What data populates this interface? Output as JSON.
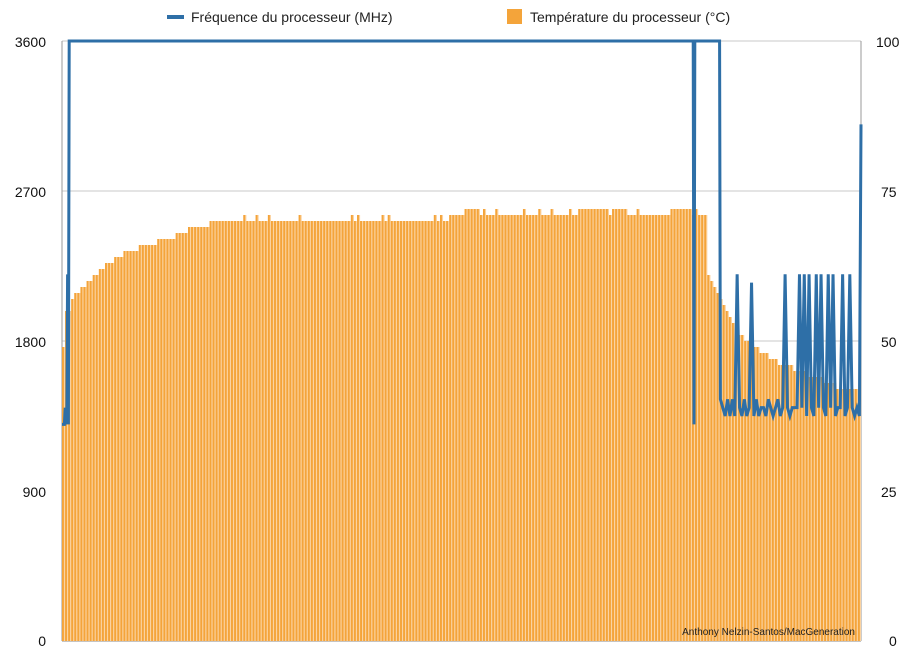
{
  "chart_data": {
    "type": "bar",
    "legend": {
      "placement": "top",
      "items": [
        {
          "label": "Fréquence du processeur (MHz)",
          "symbol": "line",
          "color": "#2e6fa7"
        },
        {
          "label": "Température du processeur (°C)",
          "symbol": "square",
          "color": "#f4a43a"
        }
      ]
    },
    "credit": "Anthony Nelzin-Santos/MacGeneration",
    "grid": true,
    "y_left": {
      "ticks": [
        0,
        900,
        1800,
        2700,
        3600
      ],
      "tick_labels": [
        "0",
        "900",
        "1800",
        "2700",
        "3600"
      ],
      "range": [
        0,
        3600
      ]
    },
    "y_right": {
      "ticks": [
        0,
        25,
        50,
        75,
        100
      ],
      "tick_labels": [
        "0",
        "25",
        "50",
        "75",
        "100"
      ],
      "range": [
        0,
        100
      ]
    },
    "series": [
      {
        "name": "Température du processeur (°C)",
        "axis": "right",
        "kind": "bars",
        "color": "#f4a43a",
        "values": [
          49,
          55,
          55,
          57,
          58,
          58,
          59,
          59,
          60,
          60,
          61,
          61,
          62,
          62,
          63,
          63,
          63,
          64,
          64,
          64,
          65,
          65,
          65,
          65,
          65,
          66,
          66,
          66,
          66,
          66,
          66,
          67,
          67,
          67,
          67,
          67,
          67,
          68,
          68,
          68,
          68,
          69,
          69,
          69,
          69,
          69,
          69,
          69,
          70,
          70,
          70,
          70,
          70,
          70,
          70,
          70,
          70,
          70,
          70,
          71,
          70,
          70,
          70,
          71,
          70,
          70,
          70,
          71,
          70,
          70,
          70,
          70,
          70,
          70,
          70,
          70,
          70,
          71,
          70,
          70,
          70,
          70,
          70,
          70,
          70,
          70,
          70,
          70,
          70,
          70,
          70,
          70,
          70,
          70,
          71,
          70,
          71,
          70,
          70,
          70,
          70,
          70,
          70,
          70,
          71,
          70,
          71,
          70,
          70,
          70,
          70,
          70,
          70,
          70,
          70,
          70,
          70,
          70,
          70,
          70,
          70,
          71,
          70,
          71,
          70,
          70,
          71,
          71,
          71,
          71,
          71,
          72,
          72,
          72,
          72,
          72,
          71,
          72,
          71,
          71,
          71,
          72,
          71,
          71,
          71,
          71,
          71,
          71,
          71,
          71,
          72,
          71,
          71,
          71,
          71,
          72,
          71,
          71,
          71,
          72,
          71,
          71,
          71,
          71,
          71,
          72,
          71,
          71,
          72,
          72,
          72,
          72,
          72,
          72,
          72,
          72,
          72,
          72,
          71,
          72,
          72,
          72,
          72,
          72,
          71,
          71,
          71,
          72,
          71,
          71,
          71,
          71,
          71,
          71,
          71,
          71,
          71,
          71,
          72,
          72,
          72,
          72,
          72,
          72,
          72,
          71,
          72,
          71,
          71,
          71,
          61,
          60,
          59,
          58,
          57,
          56,
          55,
          54,
          53,
          52,
          51,
          51,
          50,
          50,
          49,
          49,
          49,
          48,
          48,
          48,
          47,
          47,
          47,
          46,
          46,
          46,
          46,
          46,
          45,
          45,
          45,
          45,
          45,
          44,
          44,
          44,
          44,
          44,
          43,
          43,
          43,
          43,
          42,
          42,
          42,
          42,
          42,
          42,
          42,
          42
        ]
      },
      {
        "name": "Fréquence du processeur (MHz)",
        "axis": "left",
        "kind": "line",
        "color": "#2e6fa7",
        "x_range": [
          0,
          100
        ],
        "points": [
          [
            0,
            1300
          ],
          [
            0.3,
            1300
          ],
          [
            0.4,
            1400
          ],
          [
            0.6,
            1300
          ],
          [
            0.7,
            2200
          ],
          [
            0.8,
            1300
          ],
          [
            0.9,
            3600
          ],
          [
            79.0,
            3600
          ],
          [
            79.1,
            1300
          ],
          [
            79.2,
            3600
          ],
          [
            82.3,
            3600
          ],
          [
            82.4,
            1450
          ],
          [
            83.0,
            1350
          ],
          [
            83.3,
            1450
          ],
          [
            83.6,
            1350
          ],
          [
            83.9,
            1450
          ],
          [
            84.2,
            1350
          ],
          [
            84.5,
            2200
          ],
          [
            84.8,
            1400
          ],
          [
            85.1,
            1350
          ],
          [
            85.4,
            1450
          ],
          [
            85.7,
            1350
          ],
          [
            86.0,
            1400
          ],
          [
            86.3,
            2150
          ],
          [
            86.6,
            1350
          ],
          [
            86.9,
            1450
          ],
          [
            87.2,
            1350
          ],
          [
            87.5,
            1400
          ],
          [
            87.8,
            1400
          ],
          [
            88.1,
            1350
          ],
          [
            88.4,
            1450
          ],
          [
            88.7,
            1400
          ],
          [
            89.0,
            1350
          ],
          [
            89.3,
            1400
          ],
          [
            89.6,
            1450
          ],
          [
            89.9,
            1350
          ],
          [
            90.2,
            1400
          ],
          [
            90.5,
            2200
          ],
          [
            90.8,
            1400
          ],
          [
            91.1,
            1350
          ],
          [
            91.4,
            1400
          ],
          [
            91.7,
            1400
          ],
          [
            92.0,
            1400
          ],
          [
            92.3,
            2200
          ],
          [
            92.6,
            1400
          ],
          [
            92.9,
            2200
          ],
          [
            93.2,
            1350
          ],
          [
            93.5,
            2200
          ],
          [
            93.8,
            1400
          ],
          [
            94.1,
            1350
          ],
          [
            94.4,
            2200
          ],
          [
            94.7,
            1400
          ],
          [
            95.0,
            2200
          ],
          [
            95.3,
            1400
          ],
          [
            95.6,
            1350
          ],
          [
            95.9,
            2200
          ],
          [
            96.2,
            1400
          ],
          [
            96.5,
            2200
          ],
          [
            96.8,
            1350
          ],
          [
            97.1,
            1400
          ],
          [
            97.4,
            1400
          ],
          [
            97.7,
            2200
          ],
          [
            98.0,
            1350
          ],
          [
            98.3,
            1400
          ],
          [
            98.6,
            2200
          ],
          [
            98.9,
            1400
          ],
          [
            99.2,
            1350
          ],
          [
            99.5,
            1400
          ],
          [
            99.8,
            1350
          ],
          [
            100,
            3100
          ]
        ]
      }
    ]
  }
}
